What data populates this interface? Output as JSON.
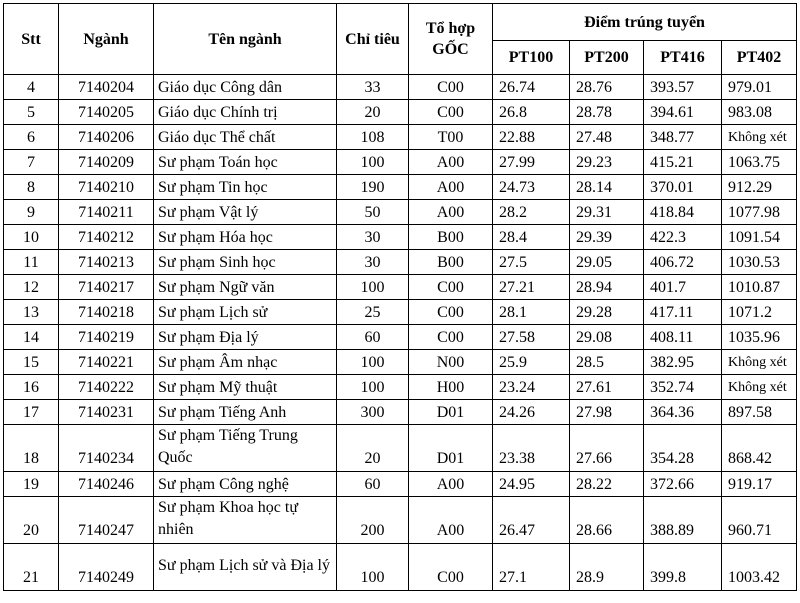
{
  "headers": {
    "stt": "Stt",
    "nganh": "Ngành",
    "ten_nganh": "Tên ngành",
    "chi_tieu": "Chỉ tiêu",
    "to_hop": "Tổ hợp GỐC",
    "diem": "Điểm trúng tuyển",
    "pt100": "PT100",
    "pt200": "PT200",
    "pt416": "PT416",
    "pt402": "PT402"
  },
  "rows": [
    {
      "stt": "4",
      "code": "7140204",
      "name": "Giáo dục Công dân",
      "quota": "33",
      "combo": "C00",
      "pt100": "26.74",
      "pt200": "28.76",
      "pt416": "393.57",
      "pt402": "979.01"
    },
    {
      "stt": "5",
      "code": "7140205",
      "name": "Giáo dục Chính trị",
      "quota": "20",
      "combo": "C00",
      "pt100": "26.8",
      "pt200": "28.78",
      "pt416": "394.61",
      "pt402": "983.08"
    },
    {
      "stt": "6",
      "code": "7140206",
      "name": "Giáo dục Thể chất",
      "quota": "108",
      "combo": "T00",
      "pt100": "22.88",
      "pt200": "27.48",
      "pt416": "348.77",
      "pt402": "Không xét"
    },
    {
      "stt": "7",
      "code": "7140209",
      "name": "Sư phạm Toán học",
      "quota": "100",
      "combo": "A00",
      "pt100": "27.99",
      "pt200": "29.23",
      "pt416": "415.21",
      "pt402": "1063.75"
    },
    {
      "stt": "8",
      "code": "7140210",
      "name": "Sư phạm Tin học",
      "quota": "190",
      "combo": "A00",
      "pt100": "24.73",
      "pt200": "28.14",
      "pt416": "370.01",
      "pt402": "912.29"
    },
    {
      "stt": "9",
      "code": "7140211",
      "name": "Sư phạm Vật lý",
      "quota": "50",
      "combo": "A00",
      "pt100": "28.2",
      "pt200": "29.31",
      "pt416": "418.84",
      "pt402": "1077.98"
    },
    {
      "stt": "10",
      "code": "7140212",
      "name": "Sư phạm Hóa học",
      "quota": "30",
      "combo": "B00",
      "pt100": "28.4",
      "pt200": "29.39",
      "pt416": "422.3",
      "pt402": "1091.54"
    },
    {
      "stt": "11",
      "code": "7140213",
      "name": "Sư phạm Sinh học",
      "quota": "30",
      "combo": "B00",
      "pt100": "27.5",
      "pt200": "29.05",
      "pt416": "406.72",
      "pt402": "1030.53"
    },
    {
      "stt": "12",
      "code": "7140217",
      "name": "Sư phạm Ngữ văn",
      "quota": "100",
      "combo": "C00",
      "pt100": "27.21",
      "pt200": "28.94",
      "pt416": "401.7",
      "pt402": "1010.87"
    },
    {
      "stt": "13",
      "code": "7140218",
      "name": "Sư phạm Lịch sử",
      "quota": "25",
      "combo": "C00",
      "pt100": "28.1",
      "pt200": "29.28",
      "pt416": "417.11",
      "pt402": "1071.2"
    },
    {
      "stt": "14",
      "code": "7140219",
      "name": "Sư phạm Địa lý",
      "quota": "60",
      "combo": "C00",
      "pt100": "27.58",
      "pt200": "29.08",
      "pt416": "408.11",
      "pt402": "1035.96"
    },
    {
      "stt": "15",
      "code": "7140221",
      "name": "Sư phạm Âm nhạc",
      "quota": "100",
      "combo": "N00",
      "pt100": "25.9",
      "pt200": "28.5",
      "pt416": "382.95",
      "pt402": "Không xét"
    },
    {
      "stt": "16",
      "code": "7140222",
      "name": "Sư phạm Mỹ thuật",
      "quota": "100",
      "combo": "H00",
      "pt100": "23.24",
      "pt200": "27.61",
      "pt416": "352.74",
      "pt402": "Không xét"
    },
    {
      "stt": "17",
      "code": "7140231",
      "name": "Sư phạm Tiếng Anh",
      "quota": "300",
      "combo": "D01",
      "pt100": "24.26",
      "pt200": "27.98",
      "pt416": "364.36",
      "pt402": "897.58"
    },
    {
      "stt": "18",
      "code": "7140234",
      "name": "Sư phạm Tiếng Trung Quốc",
      "quota": "20",
      "combo": "D01",
      "pt100": "23.38",
      "pt200": "27.66",
      "pt416": "354.28",
      "pt402": "868.42"
    },
    {
      "stt": "19",
      "code": "7140246",
      "name": "Sư phạm Công nghệ",
      "quota": "60",
      "combo": "A00",
      "pt100": "24.95",
      "pt200": "28.22",
      "pt416": "372.66",
      "pt402": "919.17"
    },
    {
      "stt": "20",
      "code": "7140247",
      "name": "Sư phạm Khoa học tự nhiên",
      "quota": "200",
      "combo": "A00",
      "pt100": "26.47",
      "pt200": "28.66",
      "pt416": "388.89",
      "pt402": "960.71"
    },
    {
      "stt": "21",
      "code": "7140249",
      "name": "Sư phạm Lịch sử và Địa lý",
      "quota": "100",
      "combo": "C00",
      "pt100": "27.1",
      "pt200": "28.9",
      "pt416": "399.8",
      "pt402": "1003.42"
    }
  ]
}
